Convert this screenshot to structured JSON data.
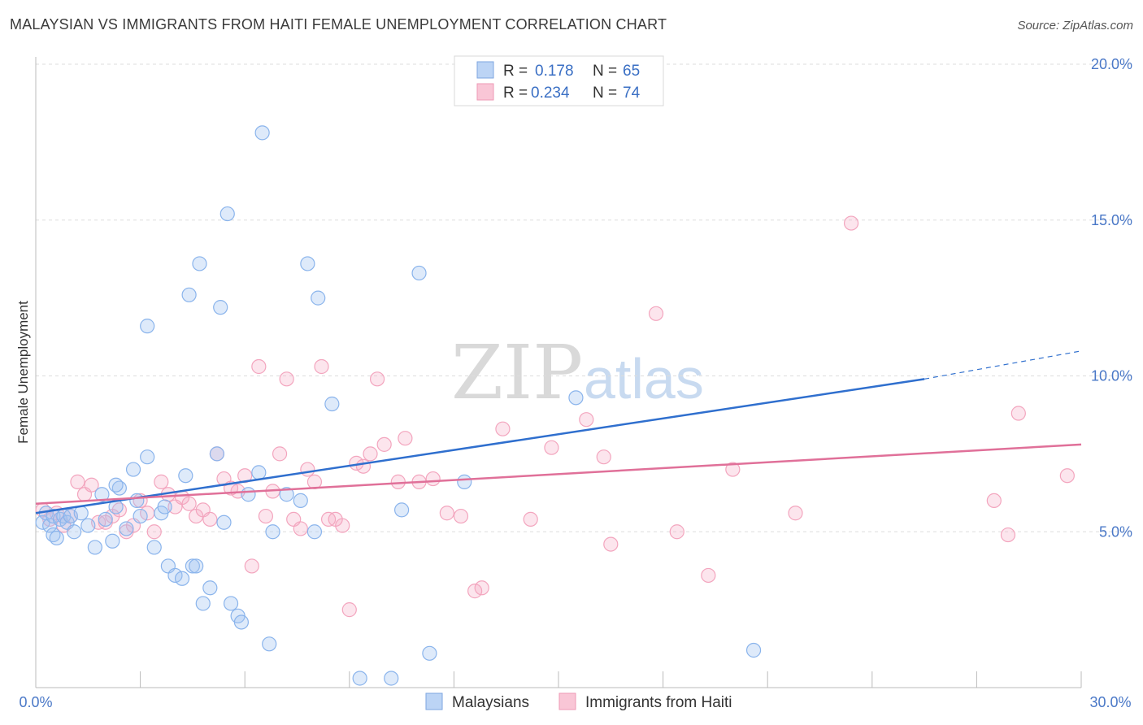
{
  "title": "MALAYSIAN VS IMMIGRANTS FROM HAITI FEMALE UNEMPLOYMENT CORRELATION CHART",
  "source": "Source: ZipAtlas.com",
  "watermark": {
    "zip": "ZIP",
    "atlas": "atlas"
  },
  "chart_data": {
    "type": "scatter",
    "title": "MALAYSIAN VS IMMIGRANTS FROM HAITI FEMALE UNEMPLOYMENT CORRELATION CHART",
    "xlabel": "",
    "ylabel": "Female Unemployment",
    "xlim": [
      0,
      30
    ],
    "ylim": [
      0,
      20
    ],
    "x_tick_labels": [
      "0.0%",
      "30.0%"
    ],
    "y_ticks": [
      5,
      10,
      15,
      20
    ],
    "y_tick_labels": [
      "5.0%",
      "10.0%",
      "15.0%",
      "20.0%"
    ],
    "grid": true,
    "legend_position": "top-center",
    "series": [
      {
        "name": "Malaysians",
        "color": "#8ab4ec",
        "line_color": "#2f6fce",
        "r_label": "R =",
        "r_value": "0.178",
        "n_label": "N =",
        "n_value": "65",
        "trend": {
          "x0": 0,
          "y0": 5.6,
          "x1": 25.5,
          "y1": 9.9,
          "dash_x1": 30,
          "dash_y1": 10.8
        },
        "points": [
          [
            0.2,
            5.3
          ],
          [
            0.3,
            5.6
          ],
          [
            0.4,
            5.2
          ],
          [
            0.5,
            4.9
          ],
          [
            0.5,
            5.5
          ],
          [
            0.6,
            4.8
          ],
          [
            0.7,
            5.4
          ],
          [
            0.8,
            5.5
          ],
          [
            0.9,
            5.3
          ],
          [
            1.0,
            5.5
          ],
          [
            1.1,
            5.0
          ],
          [
            1.3,
            5.6
          ],
          [
            1.5,
            5.2
          ],
          [
            1.7,
            4.5
          ],
          [
            1.9,
            6.2
          ],
          [
            2.0,
            5.4
          ],
          [
            2.2,
            4.7
          ],
          [
            2.3,
            5.8
          ],
          [
            2.4,
            6.4
          ],
          [
            2.6,
            5.1
          ],
          [
            2.3,
            6.5
          ],
          [
            2.8,
            7.0
          ],
          [
            2.9,
            6.0
          ],
          [
            3.0,
            5.5
          ],
          [
            3.2,
            7.4
          ],
          [
            3.4,
            4.5
          ],
          [
            3.6,
            5.6
          ],
          [
            3.8,
            3.9
          ],
          [
            4.0,
            3.6
          ],
          [
            4.2,
            3.5
          ],
          [
            3.7,
            5.8
          ],
          [
            4.3,
            6.8
          ],
          [
            4.5,
            3.9
          ],
          [
            4.6,
            3.9
          ],
          [
            4.8,
            2.7
          ],
          [
            5.0,
            3.2
          ],
          [
            5.2,
            7.5
          ],
          [
            5.4,
            5.3
          ],
          [
            5.6,
            2.7
          ],
          [
            5.8,
            2.3
          ],
          [
            5.9,
            2.1
          ],
          [
            6.1,
            6.2
          ],
          [
            6.4,
            6.9
          ],
          [
            6.7,
            1.4
          ],
          [
            6.8,
            5.0
          ],
          [
            7.2,
            6.2
          ],
          [
            7.6,
            6.0
          ],
          [
            8.0,
            5.0
          ],
          [
            8.1,
            12.5
          ],
          [
            8.5,
            9.1
          ],
          [
            9.3,
            0.3
          ],
          [
            10.2,
            0.3
          ],
          [
            10.5,
            5.7
          ],
          [
            11.0,
            13.3
          ],
          [
            11.3,
            1.1
          ],
          [
            12.3,
            6.6
          ],
          [
            15.5,
            9.3
          ],
          [
            20.6,
            1.2
          ],
          [
            3.2,
            11.6
          ],
          [
            4.4,
            12.6
          ],
          [
            4.7,
            13.6
          ],
          [
            5.3,
            12.2
          ],
          [
            5.5,
            15.2
          ],
          [
            6.5,
            17.8
          ],
          [
            7.8,
            13.6
          ]
        ]
      },
      {
        "name": "Immigrants from Haiti",
        "color": "#f3a5be",
        "line_color": "#e07099",
        "r_label": "R =",
        "r_value": "0.234",
        "n_label": "N =",
        "n_value": "74",
        "trend": {
          "x0": 0,
          "y0": 5.9,
          "x1": 30,
          "y1": 7.8
        },
        "points": [
          [
            0.2,
            5.7
          ],
          [
            0.4,
            5.4
          ],
          [
            0.6,
            5.6
          ],
          [
            0.8,
            5.2
          ],
          [
            1.0,
            5.5
          ],
          [
            1.2,
            6.6
          ],
          [
            1.4,
            6.2
          ],
          [
            1.6,
            6.5
          ],
          [
            1.8,
            5.3
          ],
          [
            2.0,
            5.3
          ],
          [
            2.2,
            5.5
          ],
          [
            2.4,
            5.7
          ],
          [
            2.6,
            5.0
          ],
          [
            2.8,
            5.2
          ],
          [
            3.0,
            6.0
          ],
          [
            3.2,
            5.6
          ],
          [
            3.4,
            5.0
          ],
          [
            3.6,
            6.6
          ],
          [
            3.8,
            6.2
          ],
          [
            4.0,
            5.8
          ],
          [
            4.2,
            6.1
          ],
          [
            4.4,
            5.9
          ],
          [
            4.6,
            5.5
          ],
          [
            4.8,
            5.7
          ],
          [
            5.0,
            5.4
          ],
          [
            5.2,
            7.5
          ],
          [
            5.4,
            6.7
          ],
          [
            5.6,
            6.4
          ],
          [
            5.8,
            6.3
          ],
          [
            6.0,
            6.8
          ],
          [
            6.2,
            3.9
          ],
          [
            6.4,
            10.3
          ],
          [
            6.6,
            5.5
          ],
          [
            6.8,
            6.3
          ],
          [
            7.0,
            7.5
          ],
          [
            7.2,
            9.9
          ],
          [
            7.4,
            5.4
          ],
          [
            7.6,
            5.1
          ],
          [
            7.8,
            7.0
          ],
          [
            8.0,
            6.6
          ],
          [
            8.2,
            10.3
          ],
          [
            8.4,
            5.4
          ],
          [
            8.6,
            5.4
          ],
          [
            8.8,
            5.2
          ],
          [
            9.0,
            2.5
          ],
          [
            9.2,
            7.2
          ],
          [
            9.4,
            7.1
          ],
          [
            9.6,
            7.5
          ],
          [
            9.8,
            9.9
          ],
          [
            10.0,
            7.8
          ],
          [
            10.4,
            6.6
          ],
          [
            10.6,
            8.0
          ],
          [
            11.0,
            6.6
          ],
          [
            11.4,
            6.7
          ],
          [
            11.8,
            5.6
          ],
          [
            12.2,
            5.5
          ],
          [
            12.6,
            3.1
          ],
          [
            12.8,
            3.2
          ],
          [
            13.4,
            8.3
          ],
          [
            14.2,
            5.4
          ],
          [
            14.8,
            7.7
          ],
          [
            15.8,
            8.6
          ],
          [
            16.3,
            7.4
          ],
          [
            16.5,
            4.6
          ],
          [
            17.8,
            12.0
          ],
          [
            18.4,
            5.0
          ],
          [
            19.3,
            3.6
          ],
          [
            20.0,
            7.0
          ],
          [
            21.8,
            5.6
          ],
          [
            23.4,
            14.9
          ],
          [
            27.5,
            6.0
          ],
          [
            27.9,
            4.9
          ],
          [
            28.2,
            8.8
          ],
          [
            29.6,
            6.8
          ]
        ]
      }
    ]
  }
}
